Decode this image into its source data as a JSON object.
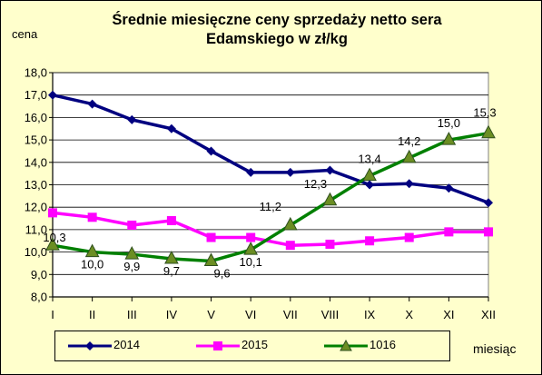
{
  "chart_data": {
    "type": "line",
    "title": "Średnie miesięczne ceny sprzedaży netto sera Edamskiego w zł/kg",
    "title_lines": [
      "Średnie miesięczne ceny sprzedaży netto sera",
      "Edamskiego w zł/kg"
    ],
    "ylabel": "cena",
    "xlabel": "miesiąc",
    "categories": [
      "I",
      "II",
      "III",
      "IV",
      "V",
      "VI",
      "VII",
      "VIII",
      "IX",
      "X",
      "XI",
      "XII"
    ],
    "ylim": [
      8.0,
      18.0
    ],
    "yticks": [
      "8,0",
      "9,0",
      "10,0",
      "11,0",
      "12,0",
      "13,0",
      "14,0",
      "15,0",
      "16,0",
      "17,0",
      "18,0"
    ],
    "grid": true,
    "legend_position": "bottom",
    "series": [
      {
        "name": "2014",
        "color": "#000080",
        "marker": "diamond",
        "values": [
          17.0,
          16.6,
          15.9,
          15.5,
          14.5,
          13.55,
          13.55,
          13.65,
          13.0,
          13.05,
          12.85,
          12.2
        ]
      },
      {
        "name": "2015",
        "color": "#ff00ff",
        "marker": "square",
        "values": [
          11.75,
          11.55,
          11.2,
          11.4,
          10.65,
          10.65,
          10.3,
          10.35,
          10.5,
          10.65,
          10.9,
          10.9
        ]
      },
      {
        "name": "1016",
        "color": "#008000",
        "marker": "triangle",
        "values": [
          10.3,
          10.0,
          9.9,
          9.7,
          9.6,
          10.1,
          11.2,
          12.3,
          13.4,
          14.2,
          15.0,
          15.3
        ],
        "data_labels": [
          "10,3",
          "10,0",
          "9,9",
          "9,7",
          "9,6",
          "10,1",
          "11,2",
          "12,3",
          "13,4",
          "14,2",
          "15,0",
          "15,3"
        ]
      }
    ]
  }
}
